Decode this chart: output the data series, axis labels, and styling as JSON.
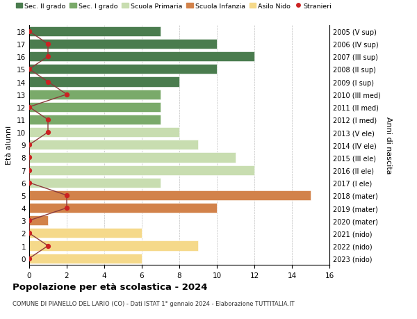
{
  "ages": [
    18,
    17,
    16,
    15,
    14,
    13,
    12,
    11,
    10,
    9,
    8,
    7,
    6,
    5,
    4,
    3,
    2,
    1,
    0
  ],
  "right_labels": [
    "2005 (V sup)",
    "2006 (IV sup)",
    "2007 (III sup)",
    "2008 (II sup)",
    "2009 (I sup)",
    "2010 (III med)",
    "2011 (II med)",
    "2012 (I med)",
    "2013 (V ele)",
    "2014 (IV ele)",
    "2015 (III ele)",
    "2016 (II ele)",
    "2017 (I ele)",
    "2018 (mater)",
    "2019 (mater)",
    "2020 (mater)",
    "2021 (nido)",
    "2022 (nido)",
    "2023 (nido)"
  ],
  "bar_values": [
    7,
    10,
    12,
    10,
    8,
    7,
    7,
    7,
    8,
    9,
    11,
    12,
    7,
    15,
    10,
    1,
    6,
    9,
    6
  ],
  "bar_colors": [
    "#4a7c4e",
    "#4a7c4e",
    "#4a7c4e",
    "#4a7c4e",
    "#4a7c4e",
    "#7aaa6a",
    "#7aaa6a",
    "#7aaa6a",
    "#c8ddb0",
    "#c8ddb0",
    "#c8ddb0",
    "#c8ddb0",
    "#c8ddb0",
    "#d2824a",
    "#d2824a",
    "#d2824a",
    "#f5d98a",
    "#f5d98a",
    "#f5d98a"
  ],
  "stranieri_ages": [
    18,
    17,
    16,
    15,
    14,
    13,
    12,
    11,
    10,
    9,
    8,
    7,
    6,
    5,
    4,
    3,
    2,
    1,
    0
  ],
  "stranieri_x": [
    0,
    1,
    1,
    0,
    1,
    2,
    0,
    1,
    1,
    0,
    0,
    0,
    0,
    2,
    2,
    0,
    0,
    1,
    0
  ],
  "title": "Popolazione per età scolastica - 2024",
  "subtitle": "COMUNE DI PIANELLO DEL LARIO (CO) - Dati ISTAT 1° gennaio 2024 - Elaborazione TUTTITALIA.IT",
  "ylabel_left": "Età alunni",
  "ylabel_right": "Anni di nascita",
  "legend_labels": [
    "Sec. II grado",
    "Sec. I grado",
    "Scuola Primaria",
    "Scuola Infanzia",
    "Asilo Nido",
    "Stranieri"
  ],
  "legend_colors": [
    "#4a7c4e",
    "#7aaa6a",
    "#c8ddb0",
    "#d2824a",
    "#f5d98a",
    "#cc2222"
  ],
  "color_stranieri": "#cc2222",
  "color_stranieri_line": "#8b3a3a",
  "xlim": [
    0,
    16
  ],
  "xticks": [
    0,
    2,
    4,
    6,
    8,
    10,
    12,
    14,
    16
  ],
  "bar_height": 0.78
}
